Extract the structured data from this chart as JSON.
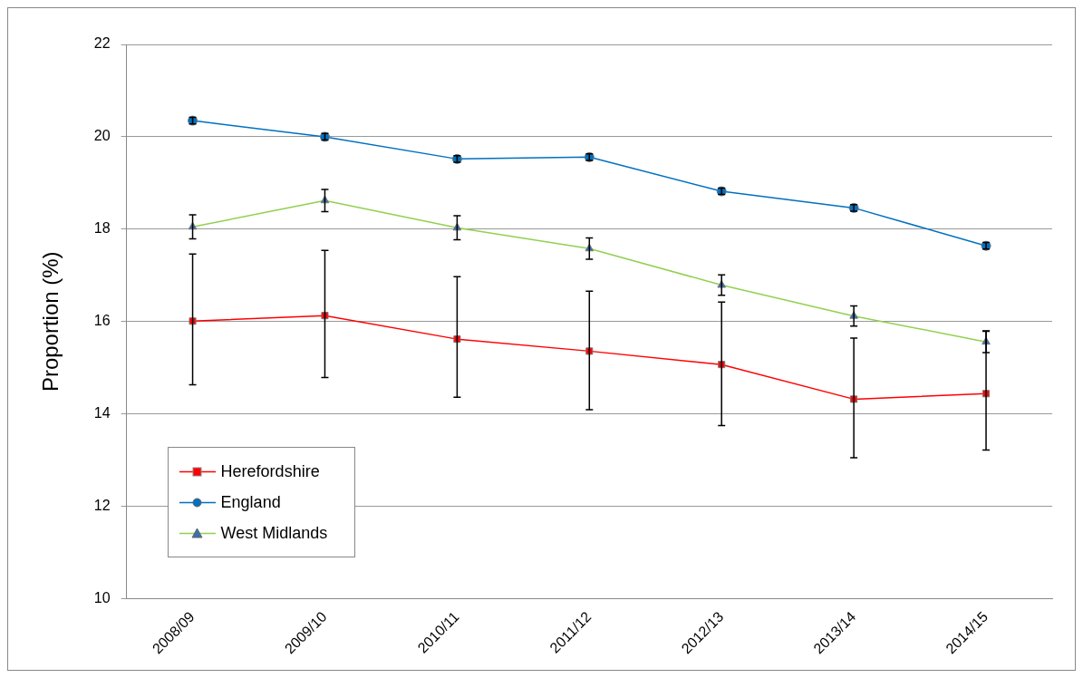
{
  "chart_data": {
    "type": "line",
    "ylabel": "Proportion (%)",
    "categories": [
      "2008/09",
      "2009/10",
      "2010/11",
      "2011/12",
      "2012/13",
      "2013/14",
      "2014/15"
    ],
    "series": [
      {
        "name": "Herefordshire",
        "color": "#ff0000",
        "marker": "square",
        "values": [
          16.01,
          16.13,
          15.62,
          15.36,
          15.07,
          14.32,
          14.44
        ],
        "errors": [
          [
            14.63,
            17.46
          ],
          [
            14.79,
            17.54
          ],
          [
            14.36,
            16.97
          ],
          [
            14.09,
            16.66
          ],
          [
            13.75,
            16.42
          ],
          [
            13.05,
            15.64
          ],
          [
            13.22,
            15.8
          ]
        ]
      },
      {
        "name": "England",
        "color": "#0070c0",
        "marker": "circle",
        "values": [
          20.35,
          20.0,
          19.52,
          19.56,
          18.82,
          18.46,
          17.64
        ],
        "errors": [
          0.07,
          0.07,
          0.07,
          0.07,
          0.07,
          0.07,
          0.07
        ]
      },
      {
        "name": "West Midlands",
        "color": "#92d050",
        "marker": "triangle",
        "values": [
          18.05,
          18.62,
          18.03,
          17.58,
          16.79,
          16.12,
          15.56
        ],
        "errors": [
          0.26,
          0.24,
          0.26,
          0.23,
          0.22,
          0.22,
          0.23
        ]
      }
    ],
    "ylim": [
      10,
      22
    ],
    "yticks": [
      10,
      12,
      14,
      16,
      18,
      20,
      22
    ],
    "grid": "y",
    "legend": "bottom left"
  }
}
